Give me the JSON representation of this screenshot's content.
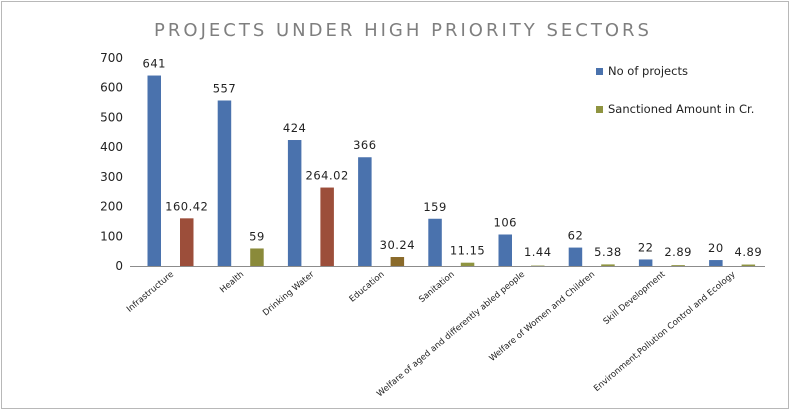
{
  "chart_data": {
    "type": "bar",
    "title": "PROJECTS UNDER HIGH PRIORITY SECTORS",
    "xlabel": "",
    "ylabel": "",
    "ylim": [
      0,
      700
    ],
    "yticks": [
      0,
      100,
      200,
      300,
      400,
      500,
      600,
      700
    ],
    "categories": [
      "Infrastructure",
      "Health",
      "Drinking Water",
      "Education",
      "Sanitation",
      "Welfare of aged and differently abled  people",
      "Welfare of Women and Children",
      "Skill Development",
      "Environment,Pollution Control and Ecology"
    ],
    "series": [
      {
        "name": "No of projects",
        "values": [
          641,
          557,
          424,
          366,
          159,
          106,
          62,
          22,
          20
        ],
        "labels": [
          "641",
          "557",
          "424",
          "366",
          "159",
          "106",
          "62",
          "22",
          "20"
        ],
        "color": "#4a72ad"
      },
      {
        "name": "Sanctioned Amount in Cr.",
        "values": [
          160.42,
          59,
          264.02,
          30.24,
          11.15,
          1.44,
          5.38,
          2.89,
          4.89
        ],
        "labels": [
          "160.42",
          "59",
          "264.02",
          "30.24",
          "11.15",
          "1.44",
          "5.38",
          "2.89",
          "4.89"
        ],
        "colors": [
          "#9c4e3a",
          "#8a8a3a",
          "#9c4e3a",
          "#8a6a2a",
          "#8f9440",
          "#8f9440",
          "#8f9440",
          "#8f9440",
          "#8f9440"
        ]
      }
    ],
    "legend_position": "right",
    "grid": false
  }
}
